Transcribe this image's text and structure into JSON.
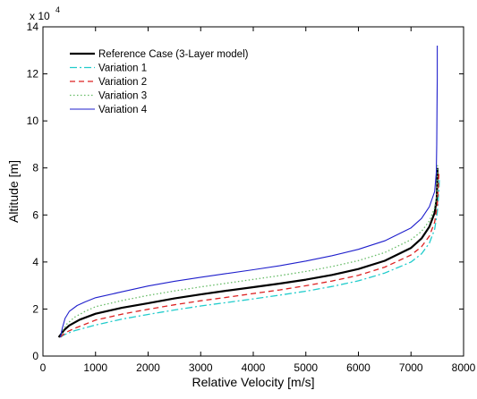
{
  "chart_data": {
    "type": "line",
    "title": "",
    "xlabel": "Relative Velocity [m/s]",
    "ylabel": "Altitude  [m]",
    "y_multiplier_label": "x 10",
    "y_multiplier_exponent": "4",
    "xlim": [
      0,
      8000
    ],
    "ylim": [
      0,
      140000
    ],
    "x_ticks": [
      0,
      1000,
      2000,
      3000,
      4000,
      5000,
      6000,
      7000,
      8000
    ],
    "x_tick_labels": [
      "0",
      "1000",
      "2000",
      "3000",
      "4000",
      "5000",
      "6000",
      "7000",
      "8000"
    ],
    "y_ticks": [
      0,
      20000,
      40000,
      60000,
      80000,
      100000,
      120000,
      140000
    ],
    "y_tick_labels": [
      "0",
      "2",
      "4",
      "6",
      "8",
      "10",
      "12",
      "14"
    ],
    "grid": false,
    "legend_position": "top-left",
    "series": [
      {
        "name": "Reference Case (3-Layer model)",
        "color": "#000000",
        "style": "solid",
        "width": 2.2,
        "x": [
          300,
          350,
          400,
          500,
          700,
          1000,
          1500,
          2000,
          2500,
          3000,
          3500,
          4000,
          4500,
          5000,
          5500,
          6000,
          6500,
          7000,
          7200,
          7350,
          7450,
          7490,
          7500,
          7505
        ],
        "y": [
          8000,
          9500,
          11000,
          13000,
          15500,
          18000,
          20500,
          22500,
          24500,
          26200,
          27800,
          29300,
          30800,
          32500,
          34500,
          37000,
          40500,
          46000,
          50000,
          55000,
          61000,
          67000,
          75000,
          80000
        ]
      },
      {
        "name": "Variation 1",
        "color": "#22cccc",
        "style": "dashdot",
        "width": 1.3,
        "x": [
          330,
          380,
          450,
          600,
          800,
          1000,
          1500,
          2000,
          2500,
          3000,
          3500,
          4000,
          4500,
          5000,
          5500,
          6000,
          6500,
          7000,
          7200,
          7350,
          7450,
          7500,
          7530,
          7540
        ],
        "y": [
          8000,
          8700,
          9500,
          10800,
          12000,
          13200,
          15700,
          17700,
          19600,
          21300,
          22800,
          24300,
          25900,
          27600,
          29600,
          32000,
          35300,
          40000,
          43500,
          48000,
          54000,
          61000,
          70000,
          76000
        ]
      },
      {
        "name": "Variation 2",
        "color": "#dd2222",
        "style": "dashed",
        "width": 1.3,
        "x": [
          330,
          380,
          450,
          600,
          800,
          1000,
          1500,
          2000,
          2500,
          3000,
          3500,
          4000,
          4500,
          5000,
          5500,
          6000,
          6500,
          7000,
          7200,
          7350,
          7450,
          7500,
          7520,
          7530
        ],
        "y": [
          8000,
          9000,
          10200,
          11800,
          13500,
          15300,
          17800,
          19900,
          21800,
          23500,
          25000,
          26600,
          28100,
          29900,
          31900,
          34300,
          37800,
          43000,
          46500,
          51000,
          57000,
          64000,
          72000,
          78000
        ]
      },
      {
        "name": "Variation 3",
        "color": "#66bb66",
        "style": "dotted",
        "width": 1.3,
        "x": [
          330,
          380,
          450,
          600,
          800,
          1000,
          1500,
          2000,
          2500,
          3000,
          3500,
          4000,
          4500,
          5000,
          5500,
          6000,
          6500,
          7000,
          7200,
          7350,
          7450,
          7490,
          7500,
          7505
        ],
        "y": [
          8000,
          11000,
          13500,
          16500,
          19000,
          21000,
          23600,
          25800,
          27700,
          29400,
          31000,
          32600,
          34200,
          36000,
          38100,
          40600,
          44000,
          49500,
          53000,
          57500,
          63000,
          68000,
          75000,
          82000
        ]
      },
      {
        "name": "Variation 4",
        "color": "#1f1fcc",
        "style": "solid",
        "width": 1.1,
        "x": [
          330,
          370,
          420,
          500,
          650,
          800,
          1000,
          1500,
          2000,
          2500,
          3000,
          3500,
          4000,
          4500,
          5000,
          5500,
          6000,
          6500,
          7000,
          7200,
          7350,
          7450,
          7480,
          7490,
          7495,
          7500,
          7500,
          7500
        ],
        "y": [
          8000,
          12000,
          16000,
          19000,
          21500,
          23000,
          24800,
          27300,
          29800,
          31800,
          33500,
          35100,
          36700,
          38400,
          40400,
          42700,
          45400,
          49000,
          54500,
          58500,
          63500,
          70000,
          78000,
          90000,
          105000,
          118000,
          126000,
          132000
        ]
      }
    ]
  }
}
